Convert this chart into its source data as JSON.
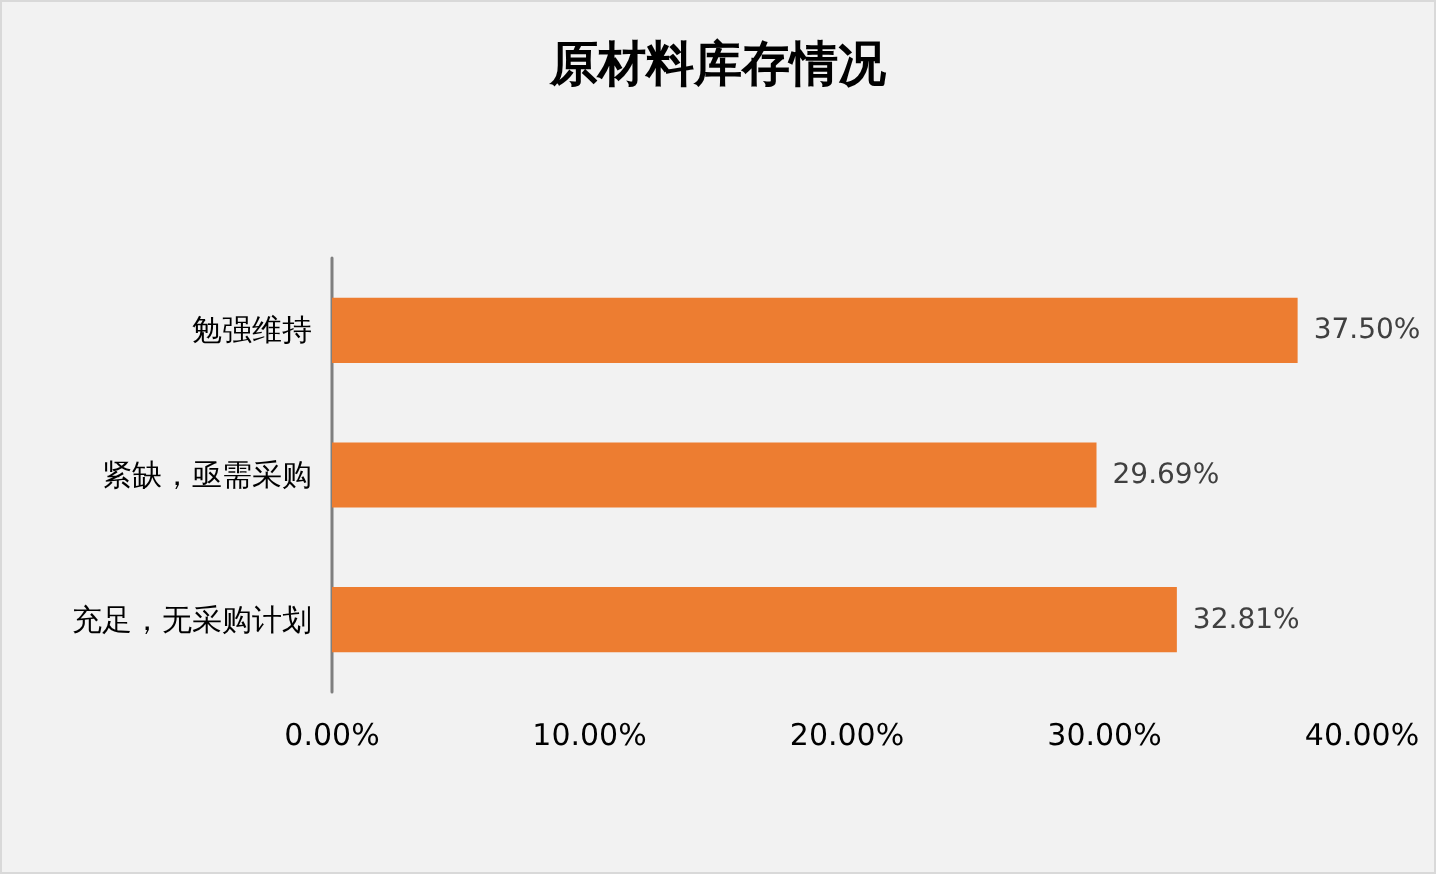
{
  "chart_data": {
    "type": "bar",
    "title": "原材料库存情况",
    "orientation": "horizontal",
    "categories": [
      "勉强维持",
      "紧缺，亟需采购",
      "充足，无采购计划"
    ],
    "values": [
      37.5,
      29.69,
      32.81
    ],
    "value_labels": [
      "37.50%",
      "29.69%",
      "32.81%"
    ],
    "color": "#ed7d31",
    "xlim": [
      0,
      40
    ],
    "xticks": [
      {
        "value": 0,
        "label": "0.00%"
      },
      {
        "value": 10,
        "label": "10.00%"
      },
      {
        "value": 20,
        "label": "20.00%"
      },
      {
        "value": 30,
        "label": "30.00%"
      },
      {
        "value": 40,
        "label": "40.00%"
      }
    ],
    "grid": false
  }
}
